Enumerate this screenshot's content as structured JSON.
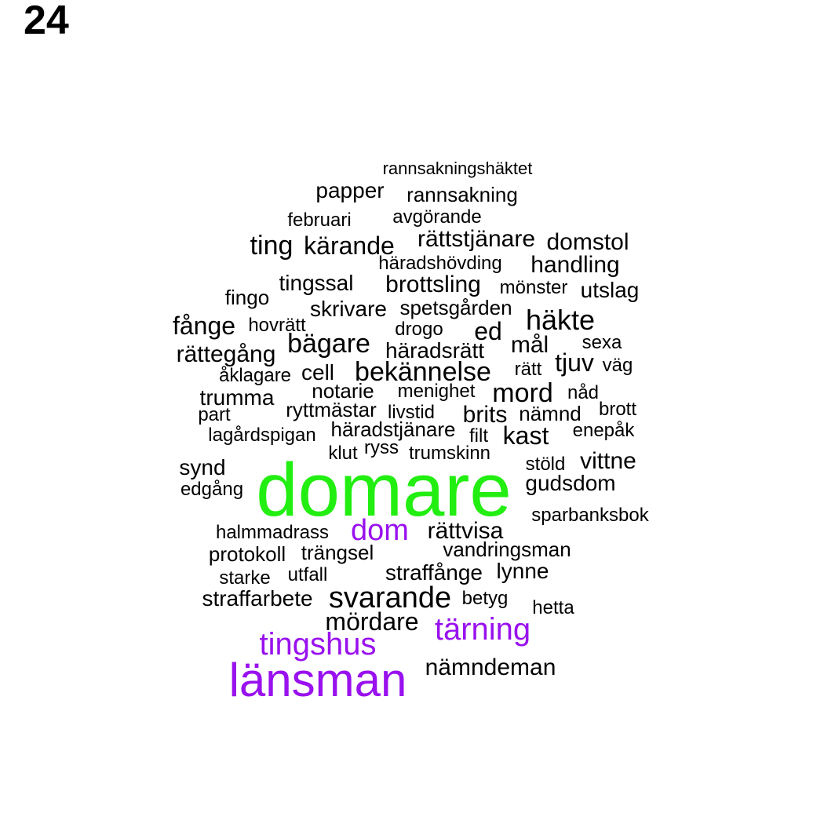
{
  "page_number": "24",
  "colors": {
    "green": "#22ee11",
    "purple": "#9911ee",
    "black": "#000000"
  },
  "words": [
    {
      "text": "rannsakningshäktet",
      "color": "black"
    },
    {
      "text": "papper",
      "color": "black"
    },
    {
      "text": "rannsakning",
      "color": "black"
    },
    {
      "text": "februari",
      "color": "black"
    },
    {
      "text": "avgörande",
      "color": "black"
    },
    {
      "text": "ting",
      "color": "black"
    },
    {
      "text": "kärande",
      "color": "black"
    },
    {
      "text": "rättstjänare",
      "color": "black"
    },
    {
      "text": "domstol",
      "color": "black"
    },
    {
      "text": "häradshövding",
      "color": "black"
    },
    {
      "text": "handling",
      "color": "black"
    },
    {
      "text": "tingssal",
      "color": "black"
    },
    {
      "text": "brottsling",
      "color": "black"
    },
    {
      "text": "mönster",
      "color": "black"
    },
    {
      "text": "utslag",
      "color": "black"
    },
    {
      "text": "fingo",
      "color": "black"
    },
    {
      "text": "skrivare",
      "color": "black"
    },
    {
      "text": "spetsgården",
      "color": "black"
    },
    {
      "text": "häkte",
      "color": "black"
    },
    {
      "text": "fånge",
      "color": "black"
    },
    {
      "text": "hovrätt",
      "color": "black"
    },
    {
      "text": "drogo",
      "color": "black"
    },
    {
      "text": "ed",
      "color": "black"
    },
    {
      "text": "bägare",
      "color": "black"
    },
    {
      "text": "rättegång",
      "color": "black"
    },
    {
      "text": "häradsrätt",
      "color": "black"
    },
    {
      "text": "mål",
      "color": "black"
    },
    {
      "text": "sexa",
      "color": "black"
    },
    {
      "text": "tjuv",
      "color": "black"
    },
    {
      "text": "åklagare",
      "color": "black"
    },
    {
      "text": "cell",
      "color": "black"
    },
    {
      "text": "bekännelse",
      "color": "black"
    },
    {
      "text": "rätt",
      "color": "black"
    },
    {
      "text": "väg",
      "color": "black"
    },
    {
      "text": "notarie",
      "color": "black"
    },
    {
      "text": "menighet",
      "color": "black"
    },
    {
      "text": "mord",
      "color": "black"
    },
    {
      "text": "nåd",
      "color": "black"
    },
    {
      "text": "trumma",
      "color": "black"
    },
    {
      "text": "part",
      "color": "black"
    },
    {
      "text": "ryttmästar",
      "color": "black"
    },
    {
      "text": "livstid",
      "color": "black"
    },
    {
      "text": "brits",
      "color": "black"
    },
    {
      "text": "nämnd",
      "color": "black"
    },
    {
      "text": "brott",
      "color": "black"
    },
    {
      "text": "lagårdspigan",
      "color": "black"
    },
    {
      "text": "häradstjänare",
      "color": "black"
    },
    {
      "text": "filt",
      "color": "black"
    },
    {
      "text": "kast",
      "color": "black"
    },
    {
      "text": "enepåk",
      "color": "black"
    },
    {
      "text": "klut",
      "color": "black"
    },
    {
      "text": "ryss",
      "color": "black"
    },
    {
      "text": "trumskinn",
      "color": "black"
    },
    {
      "text": "synd",
      "color": "black"
    },
    {
      "text": "stöld",
      "color": "black"
    },
    {
      "text": "vittne",
      "color": "black"
    },
    {
      "text": "domare",
      "color": "green"
    },
    {
      "text": "edgång",
      "color": "black"
    },
    {
      "text": "gudsdom",
      "color": "black"
    },
    {
      "text": "sparbanksbok",
      "color": "black"
    },
    {
      "text": "halmmadrass",
      "color": "black"
    },
    {
      "text": "dom",
      "color": "purple"
    },
    {
      "text": "rättvisa",
      "color": "black"
    },
    {
      "text": "protokoll",
      "color": "black"
    },
    {
      "text": "trängsel",
      "color": "black"
    },
    {
      "text": "vandringsman",
      "color": "black"
    },
    {
      "text": "starke",
      "color": "black"
    },
    {
      "text": "utfall",
      "color": "black"
    },
    {
      "text": "straffånge",
      "color": "black"
    },
    {
      "text": "lynne",
      "color": "black"
    },
    {
      "text": "straffarbete",
      "color": "black"
    },
    {
      "text": "svarande",
      "color": "black"
    },
    {
      "text": "betyg",
      "color": "black"
    },
    {
      "text": "hetta",
      "color": "black"
    },
    {
      "text": "mördare",
      "color": "black"
    },
    {
      "text": "tärning",
      "color": "purple"
    },
    {
      "text": "tingshus",
      "color": "purple"
    },
    {
      "text": "länsman",
      "color": "purple"
    },
    {
      "text": "nämndeman",
      "color": "black"
    }
  ]
}
